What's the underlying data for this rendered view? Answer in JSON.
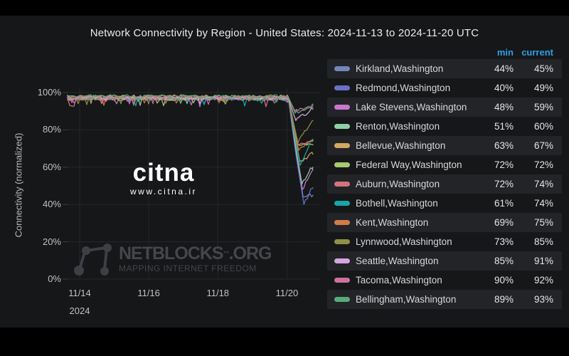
{
  "title": "Network Connectivity by Region - United States: 2024-11-13 to 2024-11-20 UTC",
  "watermarks": {
    "citna_logo": "citna",
    "citna_url": "www.citna.ir",
    "netblocks_name": "NETBLOCKS",
    "netblocks_tm": "™",
    "netblocks_tld": ".ORG",
    "netblocks_tagline": "MAPPING INTERNET FREEDOM"
  },
  "legend": {
    "headers": {
      "min": "min",
      "current": "current"
    },
    "header_color": "#2e9fe2"
  },
  "colors": {
    "panel_bg": "#161719",
    "letterbox": "#000000",
    "grid": "#26272c",
    "row_band": "#232428",
    "tick_text": "#bfc1c4",
    "accent_blue": "#2e9fe2"
  },
  "chart_data": {
    "type": "line",
    "title": "Network Connectivity by Region - United States: 2024-11-13 to 2024-11-20 UTC",
    "xlabel": "",
    "ylabel": "Connectivity (normalized)",
    "ylim": [
      0,
      100
    ],
    "grid": true,
    "legend_position": "right-table",
    "y_tick_values": [
      100,
      80,
      60,
      40,
      20,
      0
    ],
    "y_tick_labels": [
      "100%",
      "80%",
      "60%",
      "40%",
      "20%",
      "0%"
    ],
    "x_tick_days": [
      14,
      16,
      18,
      20
    ],
    "x_tick_labels": [
      "11/14",
      "11/16",
      "11/18",
      "11/20"
    ],
    "x_year_label": "2024",
    "baseline_pct": 97,
    "outage_day": "11/20",
    "series": [
      {
        "name": "Kirkland,Washington",
        "color": "#7087b8",
        "min": 44,
        "current": 45,
        "min_label": "44%",
        "current_label": "45%"
      },
      {
        "name": "Redmond,Washington",
        "color": "#6971c6",
        "min": 40,
        "current": 49,
        "min_label": "40%",
        "current_label": "49%"
      },
      {
        "name": "Lake Stevens,Washington",
        "color": "#c678cc",
        "min": 48,
        "current": 59,
        "min_label": "48%",
        "current_label": "59%"
      },
      {
        "name": "Renton,Washington",
        "color": "#8ed0a5",
        "min": 51,
        "current": 60,
        "min_label": "51%",
        "current_label": "60%"
      },
      {
        "name": "Bellevue,Washington",
        "color": "#d2a95f",
        "min": 63,
        "current": 67,
        "min_label": "63%",
        "current_label": "67%"
      },
      {
        "name": "Federal Way,Washington",
        "color": "#a9c96f",
        "min": 72,
        "current": 72,
        "min_label": "72%",
        "current_label": "72%"
      },
      {
        "name": "Auburn,Washington",
        "color": "#d1737d",
        "min": 72,
        "current": 74,
        "min_label": "72%",
        "current_label": "74%"
      },
      {
        "name": "Bothell,Washington",
        "color": "#18a7a7",
        "min": 61,
        "current": 74,
        "min_label": "61%",
        "current_label": "74%"
      },
      {
        "name": "Kent,Washington",
        "color": "#d07c46",
        "min": 69,
        "current": 75,
        "min_label": "69%",
        "current_label": "75%"
      },
      {
        "name": "Lynnwood,Washington",
        "color": "#8f8f48",
        "min": 73,
        "current": 85,
        "min_label": "73%",
        "current_label": "85%"
      },
      {
        "name": "Seattle,Washington",
        "color": "#d4a6e0",
        "min": 85,
        "current": 91,
        "min_label": "85%",
        "current_label": "91%"
      },
      {
        "name": "Tacoma,Washington",
        "color": "#d06fa0",
        "min": 90,
        "current": 92,
        "min_label": "90%",
        "current_label": "92%"
      },
      {
        "name": "Bellingham,Washington",
        "color": "#57ad79",
        "min": 89,
        "current": 93,
        "min_label": "89%",
        "current_label": "93%"
      }
    ]
  }
}
